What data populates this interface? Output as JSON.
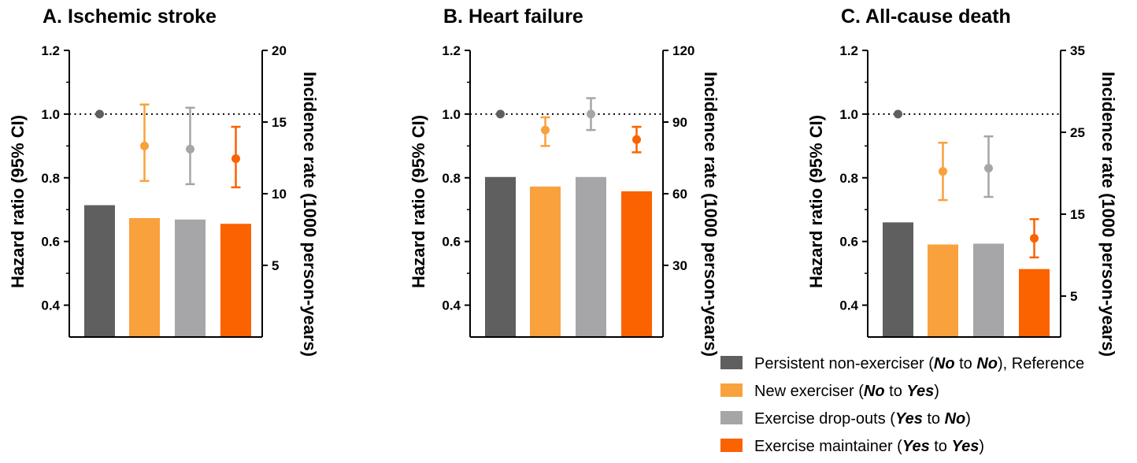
{
  "colors": {
    "persistent": "#5f5f5f",
    "new": "#f9a13c",
    "dropout": "#a6a6a8",
    "maintainer": "#fb6200"
  },
  "legend": [
    {
      "key": "persistent",
      "parts": [
        {
          "t": "Persistent non-exerciser ("
        },
        {
          "t": "No",
          "s": "bi"
        },
        {
          "t": " to "
        },
        {
          "t": "No",
          "s": "bi"
        },
        {
          "t": "), Reference"
        }
      ]
    },
    {
      "key": "new",
      "parts": [
        {
          "t": "New exerciser ("
        },
        {
          "t": "No",
          "s": "bi"
        },
        {
          "t": " to "
        },
        {
          "t": "Yes",
          "s": "bi"
        },
        {
          "t": ")"
        }
      ]
    },
    {
      "key": "dropout",
      "parts": [
        {
          "t": "Exercise drop-outs ("
        },
        {
          "t": "Yes",
          "s": "bi"
        },
        {
          "t": " to "
        },
        {
          "t": "No",
          "s": "bi"
        },
        {
          "t": ")"
        }
      ]
    },
    {
      "key": "maintainer",
      "parts": [
        {
          "t": "Exercise maintainer ("
        },
        {
          "t": "Yes",
          "s": "bi"
        },
        {
          "t": " to "
        },
        {
          "t": "Yes",
          "s": "bi"
        },
        {
          "t": ")"
        }
      ]
    }
  ],
  "chart_data": [
    {
      "type": "bar",
      "title": "A. Ischemic stroke",
      "ylabel": "Hazard ratio (95% CI)",
      "y2label": "Incidence rate (1000 person-years)",
      "categories": [
        "persistent",
        "new",
        "dropout",
        "maintainer"
      ],
      "ylim": [
        0.3,
        1.2
      ],
      "yticks": [
        0.4,
        0.6,
        0.8,
        1.0,
        1.2
      ],
      "ytick_labels": [
        "0.4",
        "0.6",
        "0.8",
        "1.0",
        "1.2"
      ],
      "y2lim": [
        0,
        20
      ],
      "y2ticks": [
        5,
        10,
        15,
        20
      ],
      "y2tick_labels": [
        "5",
        "10",
        "15",
        "20"
      ],
      "reference_line": 1.0,
      "incidence_rate": [
        9.2,
        8.3,
        8.2,
        7.9
      ],
      "hazard_ratio": [
        {
          "hr": 1.0
        },
        {
          "hr": 0.9,
          "lo": 0.79,
          "hi": 1.03
        },
        {
          "hr": 0.89,
          "lo": 0.78,
          "hi": 1.02
        },
        {
          "hr": 0.86,
          "lo": 0.77,
          "hi": 0.96
        }
      ]
    },
    {
      "type": "bar",
      "title": "B. Heart failure",
      "ylabel": "Hazard ratio (95% CI)",
      "y2label": "Incidence rate (1000 person-years)",
      "categories": [
        "persistent",
        "new",
        "dropout",
        "maintainer"
      ],
      "ylim": [
        0.3,
        1.2
      ],
      "yticks": [
        0.4,
        0.6,
        0.8,
        1.0,
        1.2
      ],
      "ytick_labels": [
        "0.4",
        "0.6",
        "0.8",
        "1.0",
        "1.2"
      ],
      "y2lim": [
        0,
        120
      ],
      "y2ticks": [
        30,
        60,
        90,
        120
      ],
      "y2tick_labels": [
        "30",
        "60",
        "90",
        "120"
      ],
      "reference_line": 1.0,
      "incidence_rate": [
        67,
        63,
        67,
        61
      ],
      "hazard_ratio": [
        {
          "hr": 1.0
        },
        {
          "hr": 0.95,
          "lo": 0.9,
          "hi": 0.99
        },
        {
          "hr": 1.0,
          "lo": 0.95,
          "hi": 1.05
        },
        {
          "hr": 0.92,
          "lo": 0.88,
          "hi": 0.96
        }
      ]
    },
    {
      "type": "bar",
      "title": "C. All-cause death",
      "ylabel": "Hazard ratio (95% CI)",
      "y2label": "Incidence rate (1000 person-years)",
      "categories": [
        "persistent",
        "new",
        "dropout",
        "maintainer"
      ],
      "ylim": [
        0.3,
        1.2
      ],
      "yticks": [
        0.4,
        0.6,
        0.8,
        1.0,
        1.2
      ],
      "ytick_labels": [
        "0.4",
        "0.6",
        "0.8",
        "1.0",
        "1.2"
      ],
      "y2lim": [
        0,
        35
      ],
      "y2ticks": [
        5,
        15,
        25,
        35
      ],
      "y2tick_labels": [
        "5",
        "15",
        "25",
        "35"
      ],
      "reference_line": 1.0,
      "incidence_rate": [
        14.0,
        11.3,
        11.4,
        8.3
      ],
      "hazard_ratio": [
        {
          "hr": 1.0
        },
        {
          "hr": 0.82,
          "lo": 0.73,
          "hi": 0.91
        },
        {
          "hr": 0.83,
          "lo": 0.74,
          "hi": 0.93
        },
        {
          "hr": 0.61,
          "lo": 0.55,
          "hi": 0.67
        }
      ]
    }
  ]
}
